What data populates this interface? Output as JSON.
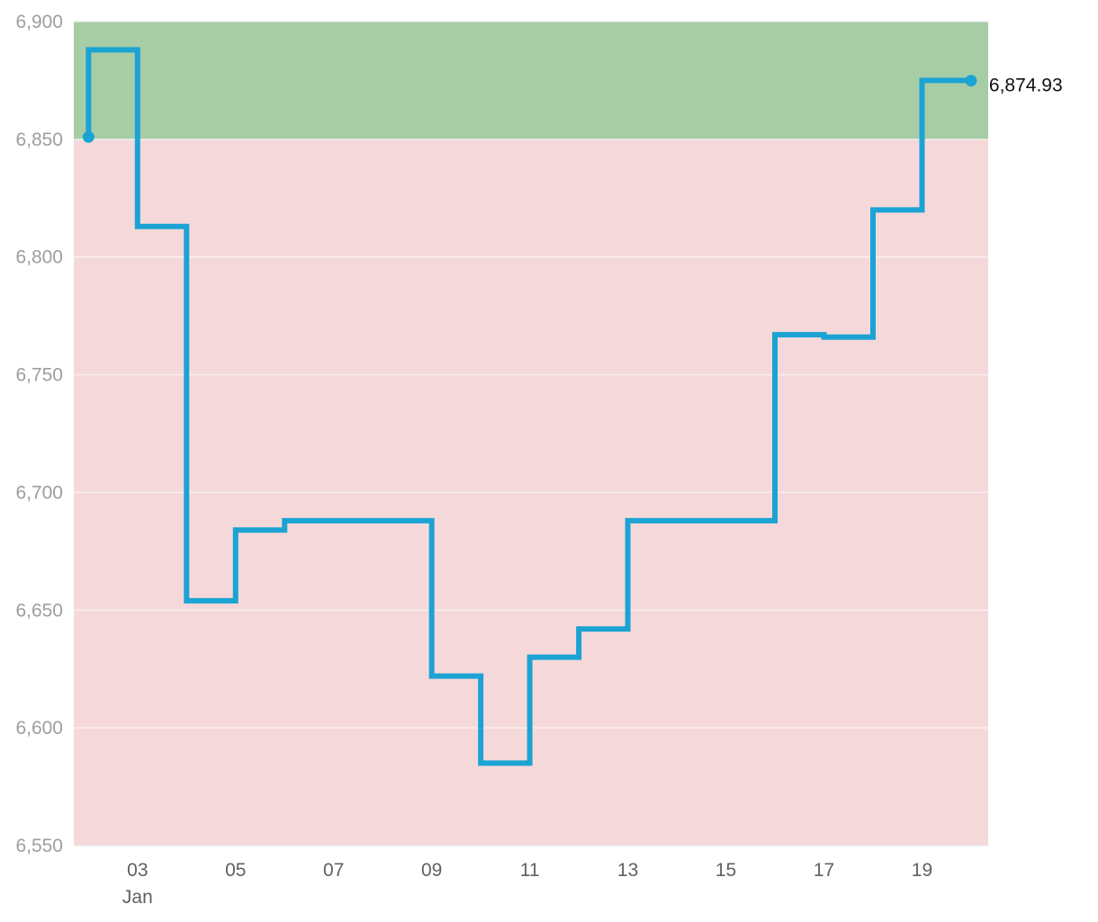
{
  "chart_data": {
    "type": "line",
    "line_style": "step",
    "x_axis": {
      "ticks": [
        {
          "label": "03",
          "sublabel": "Jan",
          "day": 3
        },
        {
          "label": "05",
          "day": 5
        },
        {
          "label": "07",
          "day": 7
        },
        {
          "label": "09",
          "day": 9
        },
        {
          "label": "11",
          "day": 11
        },
        {
          "label": "13",
          "day": 13
        },
        {
          "label": "15",
          "day": 15
        },
        {
          "label": "17",
          "day": 17
        },
        {
          "label": "19",
          "day": 19
        }
      ],
      "range_days": [
        1.7,
        20.35
      ]
    },
    "y_axis": {
      "ticks": [
        "6,550",
        "6,600",
        "6,650",
        "6,700",
        "6,750",
        "6,800",
        "6,850",
        "6,900"
      ],
      "tick_values": [
        6550,
        6600,
        6650,
        6700,
        6750,
        6800,
        6850,
        6900
      ],
      "ylim": [
        6550,
        6900
      ]
    },
    "grid": true,
    "bands": [
      {
        "from": 6550,
        "to": 6850,
        "color": "#f5d9da"
      },
      {
        "from": 6850,
        "to": 6900,
        "color": "#a7cda6"
      }
    ],
    "series": [
      {
        "color": "#1ba3d3",
        "points": [
          {
            "day": 2,
            "value": 6851
          },
          {
            "day": 3,
            "value": 6888
          },
          {
            "day": 4,
            "value": 6813
          },
          {
            "day": 5,
            "value": 6654
          },
          {
            "day": 6,
            "value": 6684
          },
          {
            "day": 9,
            "value": 6688
          },
          {
            "day": 10,
            "value": 6622
          },
          {
            "day": 11,
            "value": 6585
          },
          {
            "day": 12,
            "value": 6630
          },
          {
            "day": 13,
            "value": 6642
          },
          {
            "day": 16,
            "value": 6688
          },
          {
            "day": 17,
            "value": 6767
          },
          {
            "day": 18,
            "value": 6766
          },
          {
            "day": 19,
            "value": 6820
          },
          {
            "day": 20,
            "value": 6874.93
          }
        ],
        "steps": [
          {
            "from": 2,
            "to": 3,
            "value": 6888
          },
          {
            "from": 3,
            "to": 4,
            "value": 6813
          },
          {
            "from": 4,
            "to": 5,
            "value": 6654
          },
          {
            "from": 5,
            "to": 6,
            "value": 6684
          },
          {
            "from": 6,
            "to": 9,
            "value": 6688
          },
          {
            "from": 9,
            "to": 10,
            "value": 6622
          },
          {
            "from": 10,
            "to": 11,
            "value": 6585
          },
          {
            "from": 11,
            "to": 12,
            "value": 6630
          },
          {
            "from": 12,
            "to": 13,
            "value": 6642
          },
          {
            "from": 13,
            "to": 16,
            "value": 6688
          },
          {
            "from": 16,
            "to": 17,
            "value": 6767
          },
          {
            "from": 17,
            "to": 18,
            "value": 6766
          },
          {
            "from": 18,
            "to": 19,
            "value": 6820
          },
          {
            "from": 19,
            "to": 20,
            "value": 6875
          }
        ],
        "start": {
          "day": 2,
          "value": 6851
        },
        "end": {
          "day": 20,
          "value": 6874.93
        },
        "end_label": "6,874.93"
      }
    ]
  }
}
